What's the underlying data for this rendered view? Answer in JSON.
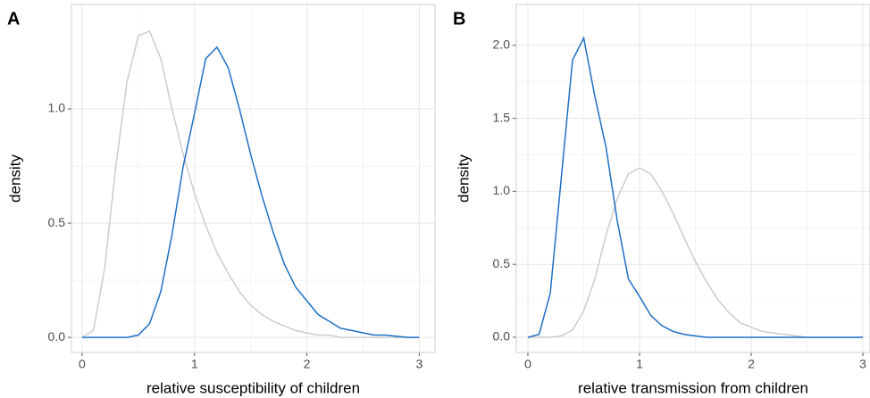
{
  "chart_data": [
    {
      "type": "line",
      "panel_label": "A",
      "x_label": "relative susceptibility of children",
      "y_label": "density",
      "x": [
        0,
        0.1,
        0.2,
        0.3,
        0.4,
        0.5,
        0.6,
        0.7,
        0.8,
        0.9,
        1.0,
        1.1,
        1.2,
        1.3,
        1.4,
        1.5,
        1.6,
        1.7,
        1.8,
        1.9,
        2.0,
        2.1,
        2.2,
        2.3,
        2.4,
        2.5,
        2.6,
        2.7,
        2.8,
        2.9,
        3.0
      ],
      "series": [
        {
          "color": "#cccccc",
          "values": [
            0,
            0.03,
            0.3,
            0.75,
            1.12,
            1.32,
            1.34,
            1.22,
            1.0,
            0.8,
            0.63,
            0.49,
            0.37,
            0.28,
            0.2,
            0.14,
            0.1,
            0.07,
            0.05,
            0.03,
            0.02,
            0.01,
            0.01,
            0,
            0,
            0,
            0,
            0,
            0,
            0,
            0
          ]
        },
        {
          "color": "#1f6fc5",
          "values": [
            0,
            0,
            0,
            0,
            0,
            0.01,
            0.06,
            0.2,
            0.45,
            0.75,
            0.98,
            1.22,
            1.27,
            1.18,
            1.0,
            0.8,
            0.62,
            0.46,
            0.32,
            0.22,
            0.16,
            0.1,
            0.07,
            0.04,
            0.03,
            0.02,
            0.01,
            0.01,
            0.005,
            0,
            0
          ]
        }
      ],
      "xlim": [
        -0.095,
        3.14
      ],
      "ylim": [
        -0.066,
        1.457
      ],
      "xticks": [
        0,
        1,
        2,
        3
      ],
      "yticks": [
        {
          "value": 0,
          "label": "0.0"
        },
        {
          "value": 0.5,
          "label": "0.5"
        },
        {
          "value": 1,
          "label": "1.0"
        }
      ],
      "grid": true
    },
    {
      "type": "line",
      "panel_label": "B",
      "x_label": "relative transmission from children",
      "y_label": "density",
      "x": [
        0,
        0.1,
        0.2,
        0.3,
        0.4,
        0.5,
        0.6,
        0.7,
        0.8,
        0.9,
        1.0,
        1.1,
        1.2,
        1.3,
        1.4,
        1.5,
        1.6,
        1.7,
        1.8,
        1.9,
        2.0,
        2.1,
        2.2,
        2.3,
        2.4,
        2.5,
        2.6,
        2.7,
        2.8,
        2.9,
        3.0
      ],
      "series": [
        {
          "color": "#cccccc",
          "values": [
            0,
            0,
            0,
            0.01,
            0.05,
            0.18,
            0.4,
            0.7,
            0.95,
            1.12,
            1.16,
            1.12,
            1.0,
            0.85,
            0.68,
            0.52,
            0.38,
            0.26,
            0.17,
            0.1,
            0.07,
            0.04,
            0.03,
            0.02,
            0.01,
            0,
            0,
            0,
            0,
            0,
            0
          ]
        },
        {
          "color": "#1f6fc5",
          "values": [
            0,
            0.02,
            0.3,
            1.1,
            1.9,
            2.05,
            1.65,
            1.3,
            0.8,
            0.4,
            0.28,
            0.15,
            0.08,
            0.04,
            0.02,
            0.01,
            0,
            0,
            0,
            0,
            0,
            0,
            0,
            0,
            0,
            0,
            0,
            0,
            0,
            0,
            0
          ]
        }
      ],
      "xlim": [
        -0.104,
        3.064
      ],
      "ylim": [
        -0.104,
        2.28
      ],
      "xticks": [
        0,
        1,
        2,
        3
      ],
      "yticks": [
        {
          "value": 0,
          "label": "0.0"
        },
        {
          "value": 0.5,
          "label": "0.5"
        },
        {
          "value": 1,
          "label": "1.0"
        },
        {
          "value": 1.5,
          "label": "1.5"
        },
        {
          "value": 2,
          "label": "2.0"
        }
      ],
      "grid": true
    }
  ]
}
